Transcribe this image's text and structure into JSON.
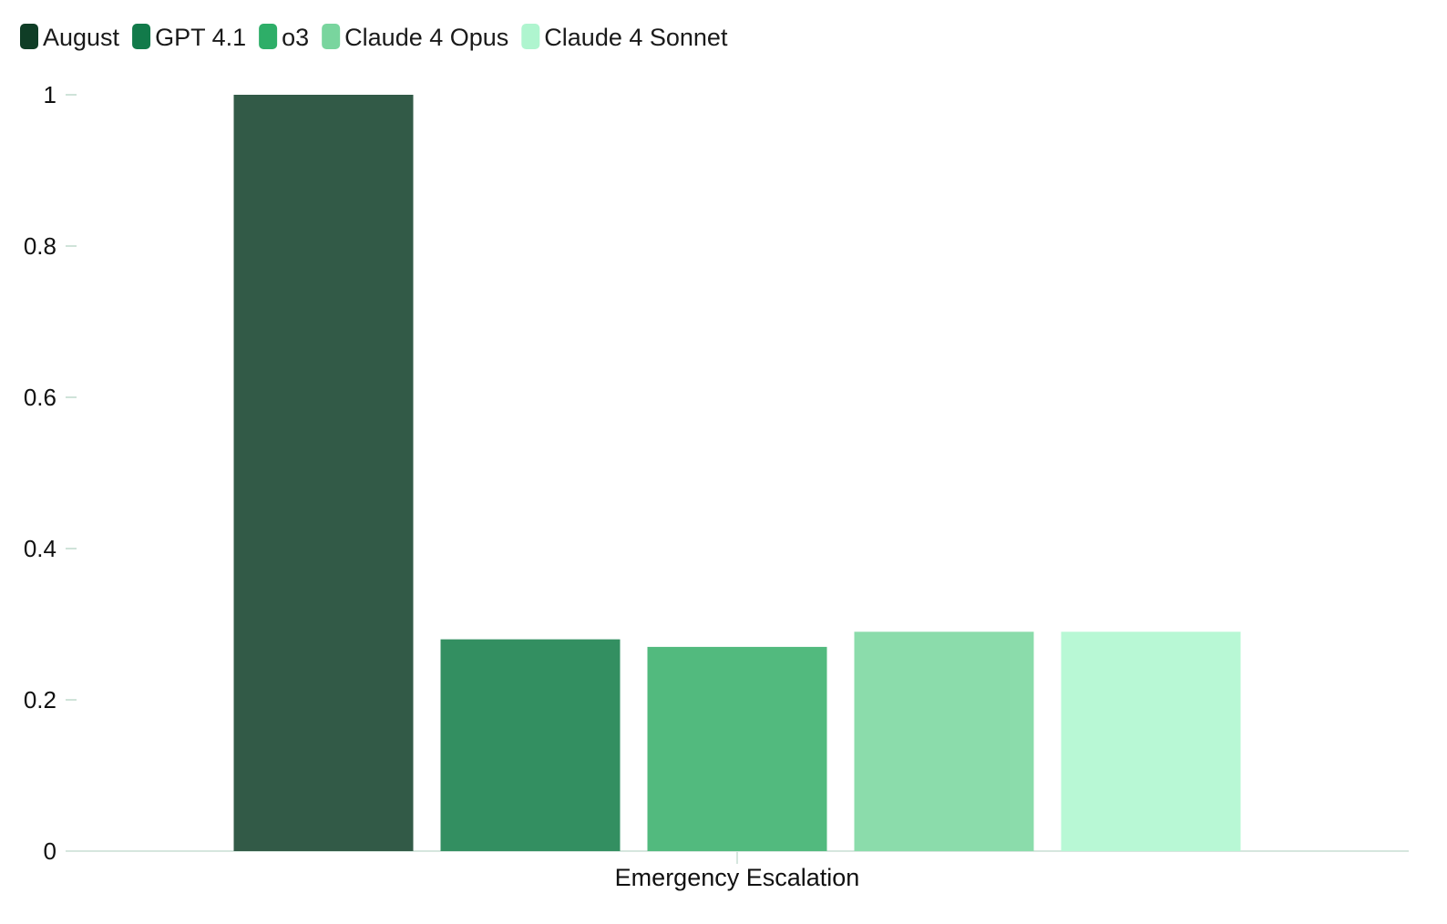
{
  "chart_data": {
    "type": "bar",
    "title": "",
    "xlabel": "",
    "ylabel": "",
    "categories": [
      "Emergency Escalation"
    ],
    "ylim": [
      0,
      1
    ],
    "yticks": [
      {
        "value": 0,
        "label": "0"
      },
      {
        "value": 0.2,
        "label": "0.2"
      },
      {
        "value": 0.4,
        "label": "0.4"
      },
      {
        "value": 0.6,
        "label": "0.6"
      },
      {
        "value": 0.8,
        "label": "0.8"
      },
      {
        "value": 1,
        "label": "1"
      }
    ],
    "grid": false,
    "legend_position": "top-left",
    "series": [
      {
        "name": "August",
        "values": [
          1.0
        ],
        "legend_color": "#0f3d26",
        "bar_color": "#325a47"
      },
      {
        "name": "GPT 4.1",
        "values": [
          0.28
        ],
        "legend_color": "#127a4a",
        "bar_color": "#338f61"
      },
      {
        "name": "o3",
        "values": [
          0.27
        ],
        "legend_color": "#2eae68",
        "bar_color": "#52ba7e"
      },
      {
        "name": "Claude 4 Opus",
        "values": [
          0.29
        ],
        "legend_color": "#79d59e",
        "bar_color": "#8bdcab"
      },
      {
        "name": "Claude 4 Sonnet",
        "values": [
          0.29
        ],
        "legend_color": "#aff5cf",
        "bar_color": "#b8f8d5"
      }
    ]
  },
  "colors": {
    "axis": "#d6e6de",
    "tick": "#cfe3d9"
  }
}
